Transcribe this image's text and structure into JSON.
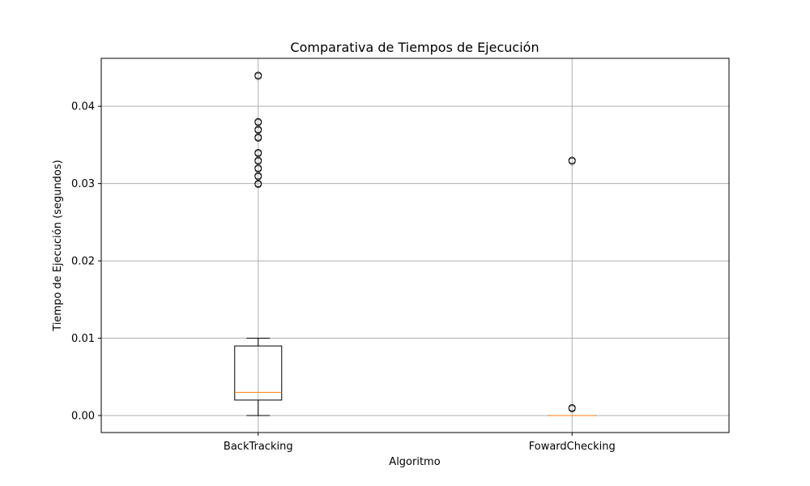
{
  "chart_data": {
    "type": "boxplot",
    "title": "Comparativa de Tiempos de Ejecución",
    "xlabel": "Algoritmo",
    "ylabel": "Tiempo de Ejecución (segundos)",
    "ylim": [
      -0.0022,
      0.0462
    ],
    "yticks": [
      0.0,
      0.01,
      0.02,
      0.03,
      0.04
    ],
    "ytick_labels": [
      "0.00",
      "0.01",
      "0.02",
      "0.03",
      "0.04"
    ],
    "grid": true,
    "categories": [
      "BackTracking",
      "FowardChecking"
    ],
    "boxes": [
      {
        "whisker_low": 0.0,
        "q1": 0.002,
        "median": 0.003,
        "q3": 0.009,
        "whisker_high": 0.01,
        "outliers": [
          0.044,
          0.038,
          0.037,
          0.036,
          0.034,
          0.033,
          0.032,
          0.031,
          0.03
        ]
      },
      {
        "whisker_low": 0.0,
        "q1": 0.0,
        "median": 0.0,
        "q3": 0.0,
        "whisker_high": 0.0,
        "outliers": [
          0.033,
          0.001
        ]
      }
    ],
    "colors": {
      "box": "#000000",
      "median": "#ff7f0e",
      "grid": "#b0b0b0",
      "flier": "#000000"
    }
  }
}
